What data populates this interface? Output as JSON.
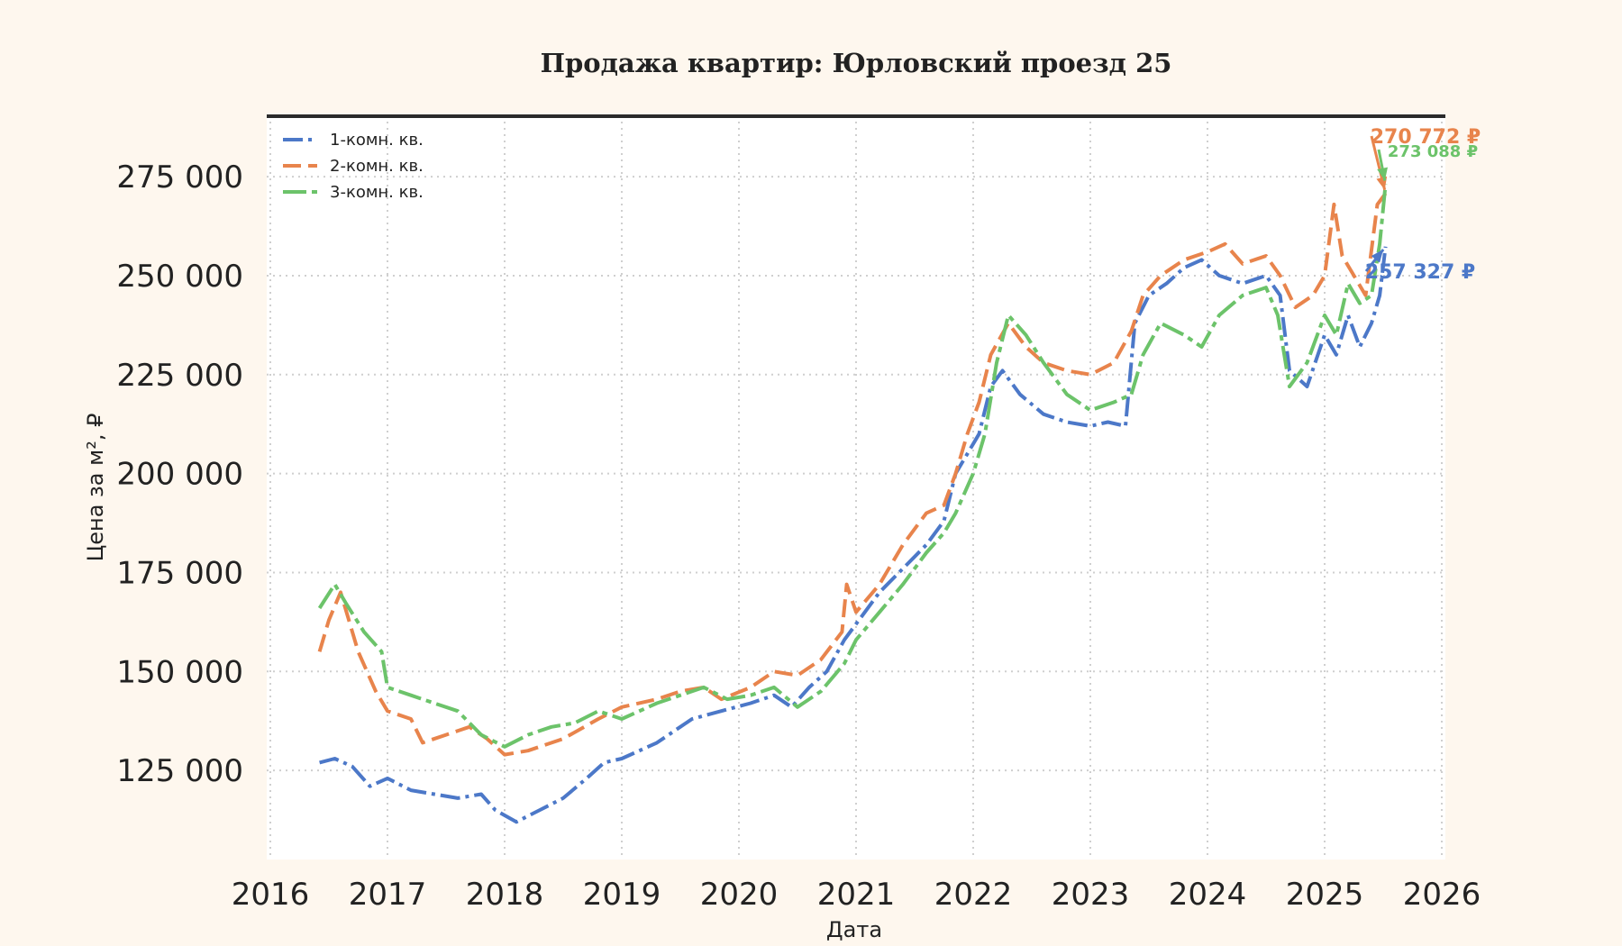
{
  "chart_data": {
    "type": "line",
    "title": "Продажа квартир: Юрловский проезд 25",
    "xlabel": "Дата",
    "ylabel": "Цена за м², ₽",
    "xlim": [
      2016,
      2026
    ],
    "ylim": [
      102500,
      290500
    ],
    "x_ticks": [
      "2016",
      "2017",
      "2018",
      "2019",
      "2020",
      "2021",
      "2022",
      "2023",
      "2024",
      "2025",
      "2026"
    ],
    "y_ticks": [
      {
        "value": 125000,
        "label": "125 000"
      },
      {
        "value": 150000,
        "label": "150 000"
      },
      {
        "value": 175000,
        "label": "175 000"
      },
      {
        "value": 200000,
        "label": "200 000"
      },
      {
        "value": 225000,
        "label": "225 000"
      },
      {
        "value": 250000,
        "label": "250 000"
      },
      {
        "value": 275000,
        "label": "275 000"
      }
    ],
    "grid": true,
    "legend_position": "top-left",
    "series": [
      {
        "name": "1-комн. кв.",
        "color": "#4c78c8",
        "end_label": "257 327 ₽",
        "x": [
          2016.42,
          2016.55,
          2016.7,
          2016.85,
          2017.0,
          2017.2,
          2017.4,
          2017.6,
          2017.8,
          2017.92,
          2018.1,
          2018.3,
          2018.5,
          2018.7,
          2018.85,
          2019.0,
          2019.3,
          2019.6,
          2019.85,
          2020.1,
          2020.3,
          2020.45,
          2020.6,
          2020.75,
          2020.9,
          2021.0,
          2021.2,
          2021.4,
          2021.6,
          2021.75,
          2021.85,
          2021.95,
          2022.05,
          2022.15,
          2022.25,
          2022.4,
          2022.6,
          2022.8,
          2023.0,
          2023.15,
          2023.3,
          2023.38,
          2023.5,
          2023.65,
          2023.8,
          2023.95,
          2024.1,
          2024.3,
          2024.5,
          2024.62,
          2024.7,
          2024.85,
          2025.0,
          2025.1,
          2025.2,
          2025.3,
          2025.4,
          2025.47,
          2025.52
        ],
        "y": [
          127000,
          128000,
          126000,
          121000,
          123000,
          120000,
          119000,
          118000,
          119000,
          115000,
          112000,
          115000,
          118000,
          123000,
          127000,
          128000,
          132000,
          138000,
          140000,
          142000,
          144000,
          141000,
          146000,
          150000,
          158000,
          162000,
          170000,
          176000,
          182000,
          188000,
          200000,
          205000,
          210000,
          222000,
          226000,
          220000,
          215000,
          213000,
          212000,
          213000,
          212000,
          238000,
          245000,
          248000,
          252000,
          254000,
          250000,
          248000,
          250000,
          245000,
          226000,
          222000,
          235000,
          230000,
          240000,
          232000,
          238000,
          245000,
          257327
        ]
      },
      {
        "name": "2-комн. кв.",
        "color": "#e8844c",
        "end_label": "270 772 ₽",
        "x": [
          2016.42,
          2016.5,
          2016.6,
          2016.75,
          2016.9,
          2017.0,
          2017.2,
          2017.3,
          2017.5,
          2017.7,
          2017.85,
          2018.0,
          2018.2,
          2018.5,
          2018.8,
          2019.0,
          2019.3,
          2019.5,
          2019.7,
          2019.85,
          2020.1,
          2020.3,
          2020.5,
          2020.7,
          2020.88,
          2020.92,
          2021.0,
          2021.2,
          2021.4,
          2021.6,
          2021.75,
          2021.85,
          2021.95,
          2022.05,
          2022.15,
          2022.3,
          2022.45,
          2022.6,
          2022.8,
          2023.0,
          2023.2,
          2023.35,
          2023.45,
          2023.6,
          2023.8,
          2024.0,
          2024.15,
          2024.3,
          2024.5,
          2024.62,
          2024.75,
          2024.9,
          2025.0,
          2025.08,
          2025.15,
          2025.25,
          2025.35,
          2025.45,
          2025.52
        ],
        "y": [
          155000,
          163000,
          170000,
          155000,
          145000,
          140000,
          138000,
          132000,
          134000,
          136000,
          133000,
          129000,
          130000,
          133000,
          138000,
          141000,
          143000,
          145000,
          146000,
          143000,
          146000,
          150000,
          149000,
          153000,
          160000,
          172000,
          165000,
          172000,
          182000,
          190000,
          192000,
          200000,
          210000,
          218000,
          230000,
          238000,
          232000,
          228000,
          226000,
          225000,
          228000,
          236000,
          245000,
          250000,
          254000,
          256000,
          258000,
          253000,
          255000,
          250000,
          242000,
          245000,
          250000,
          268000,
          255000,
          250000,
          245000,
          268000,
          270772
        ]
      },
      {
        "name": "3-комн. кв.",
        "color": "#6cc36a",
        "end_label": "273 088 ₽",
        "x": [
          2016.42,
          2016.55,
          2016.65,
          2016.8,
          2016.95,
          2017.0,
          2017.2,
          2017.4,
          2017.6,
          2017.8,
          2018.0,
          2018.2,
          2018.4,
          2018.6,
          2018.8,
          2019.0,
          2019.3,
          2019.5,
          2019.7,
          2019.9,
          2020.1,
          2020.3,
          2020.5,
          2020.7,
          2020.9,
          2021.0,
          2021.2,
          2021.4,
          2021.6,
          2021.75,
          2021.85,
          2022.0,
          2022.1,
          2022.2,
          2022.3,
          2022.45,
          2022.6,
          2022.8,
          2023.0,
          2023.2,
          2023.35,
          2023.45,
          2023.6,
          2023.8,
          2023.95,
          2024.1,
          2024.3,
          2024.5,
          2024.6,
          2024.7,
          2024.85,
          2025.0,
          2025.1,
          2025.2,
          2025.3,
          2025.4,
          2025.47,
          2025.52
        ],
        "y": [
          166000,
          172000,
          167000,
          160000,
          155000,
          146000,
          144000,
          142000,
          140000,
          134000,
          131000,
          134000,
          136000,
          137000,
          140000,
          138000,
          142000,
          144000,
          146000,
          143000,
          144000,
          146000,
          141000,
          145000,
          152000,
          158000,
          165000,
          172000,
          180000,
          185000,
          190000,
          200000,
          210000,
          228000,
          240000,
          235000,
          228000,
          220000,
          216000,
          218000,
          220000,
          230000,
          238000,
          235000,
          232000,
          240000,
          245000,
          247000,
          240000,
          222000,
          228000,
          240000,
          235000,
          248000,
          243000,
          245000,
          258000,
          273088
        ]
      }
    ]
  }
}
